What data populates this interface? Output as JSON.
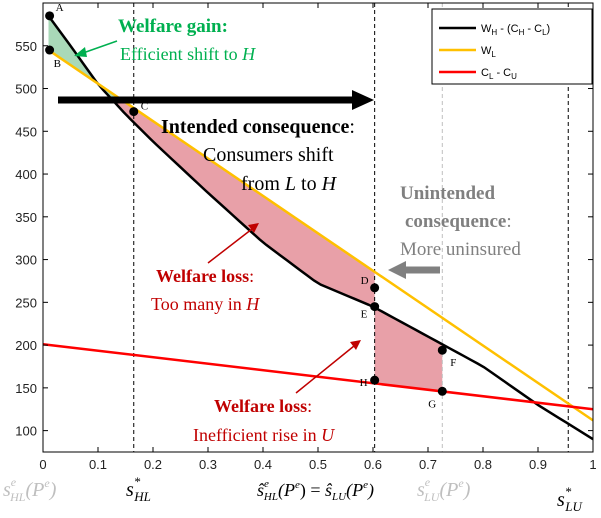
{
  "chart_data": {
    "type": "line",
    "title": "",
    "xlabel": "",
    "ylabel": "",
    "xlim": [
      0,
      1
    ],
    "ylim": [
      75,
      600
    ],
    "x_ticks": [
      "0",
      "0.1",
      "0.2",
      "0.3",
      "0.4",
      "0.5",
      "0.6",
      "0.7",
      "0.8",
      "0.9",
      "1"
    ],
    "y_ticks": [
      "100",
      "150",
      "200",
      "250",
      "300",
      "350",
      "400",
      "450",
      "500",
      "550"
    ],
    "grid": false,
    "legend_position": "top-right",
    "series": [
      {
        "name": "W_H - (C_H - C_L)",
        "color": "#000000",
        "x": [
          0.01,
          0.05,
          0.1,
          0.15,
          0.2,
          0.3,
          0.4,
          0.5,
          0.6,
          0.7,
          0.8,
          0.9,
          1.0
        ],
        "y": [
          585,
          550,
          505,
          470,
          438,
          378,
          320,
          272,
          245,
          210,
          175,
          130,
          90
        ]
      },
      {
        "name": "W_L",
        "color": "#FFC000",
        "x": [
          0.01,
          1.0
        ],
        "y": [
          545,
          112
        ]
      },
      {
        "name": "C_L - C_U",
        "color": "#FF0000",
        "x": [
          0.0,
          1.0
        ],
        "y": [
          201,
          125
        ]
      }
    ],
    "points": [
      {
        "label": "A",
        "x": 0.012,
        "y": 585
      },
      {
        "label": "B",
        "x": 0.012,
        "y": 545
      },
      {
        "label": "C",
        "x": 0.165,
        "y": 473
      },
      {
        "label": "D",
        "x": 0.603,
        "y": 267
      },
      {
        "label": "E",
        "x": 0.603,
        "y": 245
      },
      {
        "label": "F",
        "x": 0.726,
        "y": 194
      },
      {
        "label": "G",
        "x": 0.726,
        "y": 146
      },
      {
        "label": "H",
        "x": 0.603,
        "y": 159
      }
    ],
    "vlines": [
      {
        "x": 0.0,
        "color": "#bfbfbf"
      },
      {
        "x": 0.165,
        "color": "#000000"
      },
      {
        "x": 0.603,
        "color": "#000000"
      },
      {
        "x": 0.726,
        "color": "#bfbfbf"
      },
      {
        "x": 0.955,
        "color": "#000000"
      }
    ]
  },
  "annotations": {
    "gain_title": "Welfare gain:",
    "gain_body_pre": "Efficient shift to ",
    "gain_body_var": "H",
    "intended_title": "Intended consequence",
    "intended_colon": ":",
    "intended_line2": "Consumers shift",
    "intended_line3_pre": "from ",
    "intended_line3_l": "L",
    "intended_line3_mid": " to ",
    "intended_line3_h": "H",
    "unintended_line1": "Unintended",
    "unintended_line2": "consequence",
    "unintended_colon": ":",
    "unintended_line3": "More uninsured",
    "loss1_title": "Welfare loss",
    "loss1_colon": ":",
    "loss1_body_pre": "Too many in ",
    "loss1_body_var": "H",
    "loss2_title": "Welfare loss",
    "loss2_colon": ":",
    "loss2_body_pre": "Inefficient rise in ",
    "loss2_body_var": "U"
  },
  "legend": {
    "entries": [
      {
        "main": "W",
        "sub1": "H",
        "mid": " - (C",
        "sub2": "H",
        "mid2": " - C",
        "sub3": "L",
        "end": ")",
        "color": "#000000"
      },
      {
        "main": "W",
        "sub1": "L",
        "mid": "",
        "sub2": "",
        "mid2": "",
        "sub3": "",
        "end": "",
        "color": "#FFC000"
      },
      {
        "main": "C",
        "sub1": "L",
        "mid": " - C",
        "sub2": "U",
        "mid2": "",
        "sub3": "",
        "end": "",
        "color": "#FF0000"
      }
    ]
  },
  "bottom_labels": {
    "s_hl_e": {
      "base": "s",
      "sub": "HL",
      "sup": "e",
      "arg": "(P",
      "arg_sup": "e",
      "close": ")"
    },
    "s_hl_star": {
      "base": "s",
      "sub": "HL",
      "sup": "*"
    },
    "shat": {
      "base1": "ŝ",
      "sub1": "HL",
      "sup1": "e",
      "arg1": "(P",
      "argsup1": "e",
      "close1": ") = ",
      "base2": "ŝ",
      "sub2": "LU",
      "arg2": "(P",
      "argsup2": "e",
      "close2": ")"
    },
    "s_lu_e": {
      "base": "s",
      "sub": "LU",
      "sup": "e",
      "arg": "(P",
      "arg_sup": "e",
      "close": ")"
    },
    "s_lu_star": {
      "base": "s",
      "sub": "LU",
      "sup": "*"
    }
  },
  "colors": {
    "black": "#000000",
    "gold": "#FFC000",
    "red": "#FF0000",
    "green": "#00B050",
    "gain_fill": "#A9D9B8",
    "loss_fill": "#E8A0A8",
    "annot_red": "#C00000",
    "gray": "#808080",
    "light_gray": "#bfbfbf"
  }
}
